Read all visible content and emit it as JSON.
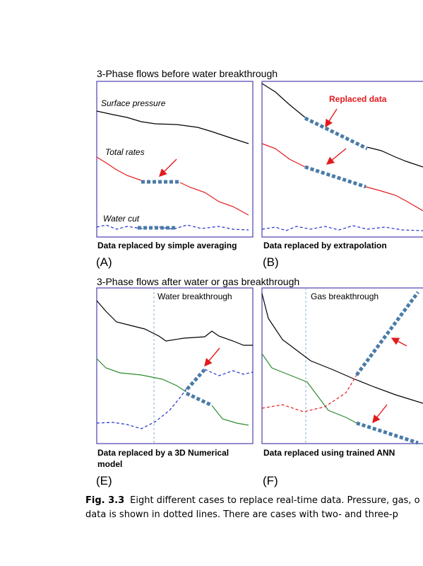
{
  "figure": {
    "top_title": "3-Phase flows before water breakthrough",
    "bottom_title": "3-Phase flows after water or gas breakthrough",
    "panels": [
      {
        "labels": [
          "Surface pressure",
          "Total rates",
          "Water cut"
        ],
        "caption": [
          "Data replaced by simple averaging"
        ],
        "letter": "(A)"
      },
      {
        "labels": [
          "Replaced data"
        ],
        "caption": [
          "Data replaced by extrapolation"
        ],
        "letter": "(B)"
      },
      {
        "labels": [
          "Water breakthrough"
        ],
        "caption": [
          "Data replaced by a 3D Numerical",
          "model"
        ],
        "letter": "(E)"
      },
      {
        "labels": [
          "Gas breakthrough"
        ],
        "caption": [
          "Data replaced using trained ANN"
        ],
        "letter": "(F)"
      }
    ],
    "fig_caption": {
      "label": "Fig. 3.3",
      "lines": [
        "Eight different cases to replace real-time data. Pressure, gas, o",
        "data is shown in dotted lines. There are cases with two- and three-p"
      ]
    }
  }
}
